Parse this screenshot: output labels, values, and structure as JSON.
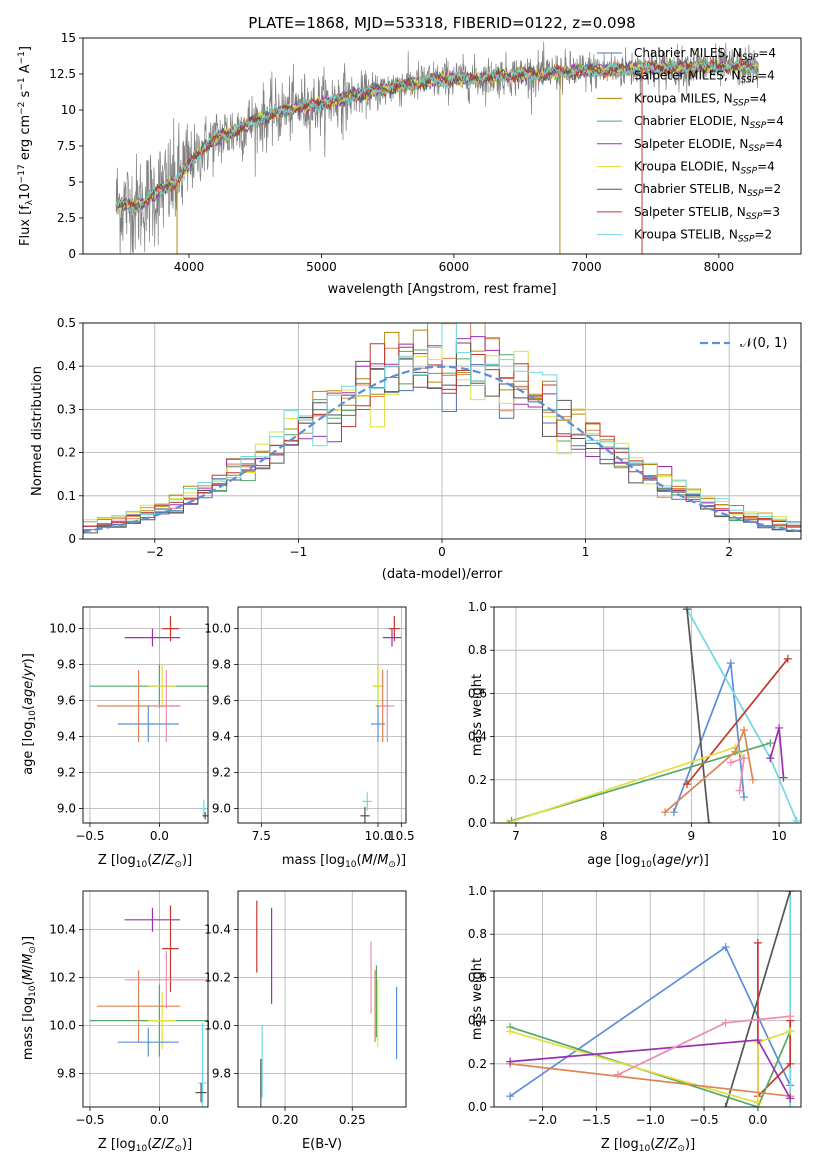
{
  "chart_data": [
    {
      "id": "spectrum",
      "type": "line",
      "title": "PLATE=1868, MJD=53318, FIBERID=0122, z=0.098",
      "xlabel": "wavelength [Angstrom, rest frame]",
      "ylabel": "Flux [f_λ 10^-17 erg cm^-2 s^-1 A^-1]",
      "xlim": [
        3200,
        8620
      ],
      "ylim": [
        0,
        15
      ],
      "xticks": [
        4000,
        5000,
        6000,
        7000,
        8000
      ],
      "yticks": [
        0,
        2.5,
        5,
        7.5,
        10,
        12.5,
        15
      ],
      "grid": false,
      "legend_position": "right",
      "legend": [
        {
          "label": "Chabrier MILES, N_SSP=4",
          "color": "#4c72b0"
        },
        {
          "label": "Salpeter MILES, N_SSP=4",
          "color": "#dd8452"
        },
        {
          "label": "Kroupa MILES, N_SSP=4",
          "color": "#b8860b"
        },
        {
          "label": "Chabrier ELODIE, N_SSP=4",
          "color": "#55a868"
        },
        {
          "label": "Salpeter ELODIE, N_SSP=4",
          "color": "#9b30b0"
        },
        {
          "label": "Kroupa ELODIE, N_SSP=4",
          "color": "#e0e040"
        },
        {
          "label": "Chabrier STELIB, N_SSP=2",
          "color": "#555555"
        },
        {
          "label": "Salpeter STELIB, N_SSP=3",
          "color": "#c0392b"
        },
        {
          "label": "Kroupa STELIB, N_SSP=2",
          "color": "#70d8e0"
        }
      ],
      "continuum": {
        "x": [
          3450,
          3600,
          3700,
          3800,
          3900,
          4000,
          4100,
          4200,
          4300,
          4400,
          4500,
          4600,
          4700,
          4800,
          4900,
          5000,
          5200,
          5400,
          5600,
          5800,
          6000,
          6200,
          6400,
          6600,
          6800,
          7000,
          7200,
          7400,
          7600,
          7800,
          8000,
          8200,
          8300
        ],
        "y": [
          3.5,
          3.3,
          3.9,
          4.5,
          5.0,
          6.2,
          7.3,
          8.0,
          8.4,
          8.8,
          9.2,
          9.6,
          9.9,
          10.2,
          10.3,
          10.4,
          10.9,
          11.3,
          11.7,
          12.0,
          12.2,
          12.2,
          12.4,
          12.5,
          12.6,
          12.7,
          12.8,
          12.9,
          12.9,
          13.0,
          13.0,
          13.0,
          12.9
        ]
      },
      "data_color": "#808080",
      "spikes": [
        {
          "x": 3910,
          "color": "#b8860b"
        },
        {
          "x": 6800,
          "color": "#b8860b"
        },
        {
          "x": 7420,
          "color": "#c0392b"
        }
      ]
    },
    {
      "id": "residuals",
      "type": "line",
      "xlabel": "(data-model)/error",
      "ylabel": "Normed distribution",
      "xlim": [
        -2.5,
        2.5
      ],
      "ylim": [
        0,
        0.5
      ],
      "xticks": [
        -2,
        -1,
        0,
        1,
        2
      ],
      "yticks": [
        0.0,
        0.1,
        0.2,
        0.3,
        0.4,
        0.5
      ],
      "grid": true,
      "legend": [
        {
          "label": "𝒩(0, 1)",
          "style": "dashed",
          "color": "#5b8fd8"
        }
      ],
      "series_colors": [
        "#4c72b0",
        "#dd8452",
        "#b8860b",
        "#55a868",
        "#9b30b0",
        "#e0e040",
        "#555555",
        "#c0392b",
        "#70d8e0"
      ]
    },
    {
      "id": "age_vs_Z",
      "type": "scatter",
      "xlabel": "Z [log10(Z/Z⊙)]",
      "ylabel": "age  [log10(age/yr)]",
      "xlim": [
        -0.55,
        0.35
      ],
      "ylim": [
        8.92,
        10.12
      ],
      "xticks": [
        "-0.5",
        "0.0"
      ],
      "yticks": [
        "9.0",
        "9.2",
        "9.4",
        "9.6",
        "9.8",
        "10.0"
      ],
      "grid": true,
      "points": [
        {
          "x": 0.08,
          "y": 10.0,
          "xerr": 0.06,
          "yerr": 0.07,
          "color": "#c0392b"
        },
        {
          "x": -0.05,
          "y": 9.95,
          "xerr": 0.2,
          "yerr": 0.05,
          "color": "#9b30b0"
        },
        {
          "x": 0.0,
          "y": 9.68,
          "xerr": 0.5,
          "yerr": 0.12,
          "color": "#55a868"
        },
        {
          "x": 0.02,
          "y": 9.68,
          "xerr": 0.1,
          "yerr": 0.12,
          "color": "#e0e040"
        },
        {
          "x": -0.15,
          "y": 9.57,
          "xerr": 0.3,
          "yerr": 0.2,
          "color": "#dd8452"
        },
        {
          "x": 0.05,
          "y": 9.57,
          "xerr": 0.1,
          "yerr": 0.2,
          "color": "#f08cb0"
        },
        {
          "x": -0.08,
          "y": 9.47,
          "xerr": 0.22,
          "yerr": 0.1,
          "color": "#5b8fd8"
        },
        {
          "x": 0.32,
          "y": 9.0,
          "xerr": 0.03,
          "yerr": 0.05,
          "color": "#70d8e0"
        },
        {
          "x": 0.33,
          "y": 8.96,
          "xerr": 0.02,
          "yerr": 0.02,
          "color": "#555555"
        }
      ]
    },
    {
      "id": "age_vs_mass",
      "type": "scatter",
      "xlabel": "mass [log10(M/M⊙)]",
      "ylabel": "",
      "xlim": [
        7.0,
        10.6
      ],
      "ylim": [
        8.92,
        10.12
      ],
      "xticks": [
        "7.5",
        "10.0",
        "10.5"
      ],
      "yticks": [
        "9.0",
        "9.2",
        "9.4",
        "9.6",
        "9.8",
        "10.0"
      ],
      "grid": true,
      "points": [
        {
          "x": 10.35,
          "y": 10.0,
          "xerr": 0.12,
          "yerr": 0.07,
          "color": "#c0392b"
        },
        {
          "x": 10.3,
          "y": 9.95,
          "xerr": 0.2,
          "yerr": 0.05,
          "color": "#9b30b0"
        },
        {
          "x": 10.0,
          "y": 9.68,
          "xerr": 0.1,
          "yerr": 0.12,
          "color": "#55a868"
        },
        {
          "x": 10.0,
          "y": 9.68,
          "xerr": 0.12,
          "yerr": 0.12,
          "color": "#e0e040"
        },
        {
          "x": 10.1,
          "y": 9.57,
          "xerr": 0.15,
          "yerr": 0.2,
          "color": "#dd8452"
        },
        {
          "x": 10.2,
          "y": 9.57,
          "xerr": 0.15,
          "yerr": 0.2,
          "color": "#f08cb0"
        },
        {
          "x": 10.0,
          "y": 9.47,
          "xerr": 0.15,
          "yerr": 0.1,
          "color": "#5b8fd8"
        },
        {
          "x": 9.77,
          "y": 9.04,
          "xerr": 0.1,
          "yerr": 0.05,
          "color": "#70d8e0"
        },
        {
          "x": 9.72,
          "y": 8.96,
          "xerr": 0.1,
          "yerr": 0.05,
          "color": "#555555"
        }
      ]
    },
    {
      "id": "mass_weight_vs_age",
      "type": "line",
      "xlabel": "age  [log10(age/yr)]",
      "ylabel": "mass weight",
      "xlim": [
        6.75,
        10.25
      ],
      "ylim": [
        0,
        1
      ],
      "xticks": [
        "7",
        "8",
        "9",
        "10"
      ],
      "yticks": [
        "0.0",
        "0.2",
        "0.4",
        "0.6",
        "0.8",
        "1.0"
      ],
      "grid": true,
      "series": [
        {
          "color": "#5b8fd8",
          "points": [
            [
              8.8,
              0.05
            ],
            [
              9.45,
              0.74
            ],
            [
              9.6,
              0.12
            ]
          ]
        },
        {
          "color": "#70d8e0",
          "points": [
            [
              8.95,
              0.99
            ],
            [
              9.9,
              0.3
            ],
            [
              10.2,
              0.01
            ]
          ]
        },
        {
          "color": "#555555",
          "points": [
            [
              8.95,
              0.99
            ],
            [
              9.2,
              0.0
            ]
          ]
        },
        {
          "color": "#c0392b",
          "points": [
            [
              8.95,
              0.18
            ],
            [
              10.1,
              0.76
            ]
          ]
        },
        {
          "color": "#55a868",
          "points": [
            [
              6.95,
              0.01
            ],
            [
              9.9,
              0.37
            ]
          ]
        },
        {
          "color": "#e0e040",
          "points": [
            [
              6.9,
              0.0
            ],
            [
              9.5,
              0.35
            ],
            [
              9.6,
              0.3
            ]
          ]
        },
        {
          "color": "#dd8452",
          "points": [
            [
              8.7,
              0.05
            ],
            [
              9.5,
              0.33
            ],
            [
              9.6,
              0.43
            ],
            [
              9.7,
              0.2
            ]
          ]
        },
        {
          "color": "#9b30b0",
          "points": [
            [
              9.9,
              0.3
            ],
            [
              10.0,
              0.44
            ],
            [
              10.05,
              0.21
            ]
          ]
        },
        {
          "color": "#f08cb0",
          "points": [
            [
              9.45,
              0.28
            ],
            [
              9.6,
              0.3
            ],
            [
              9.55,
              0.15
            ]
          ]
        }
      ]
    },
    {
      "id": "mass_vs_Z",
      "type": "scatter",
      "xlabel": "Z [log10(Z/Z⊙)]",
      "ylabel": "mass [log10(M/M⊙)]",
      "xlim": [
        -0.55,
        0.35
      ],
      "ylim": [
        9.66,
        10.56
      ],
      "xticks": [
        "-0.5",
        "0.0"
      ],
      "yticks": [
        "9.8",
        "10.0",
        "10.2",
        "10.4"
      ],
      "grid": true,
      "points": [
        {
          "x": 0.08,
          "y": 10.32,
          "xerr": 0.06,
          "yerr": 0.18,
          "color": "#c0392b"
        },
        {
          "x": -0.05,
          "y": 10.44,
          "xerr": 0.2,
          "yerr": 0.05,
          "color": "#9b30b0"
        },
        {
          "x": 0.0,
          "y": 10.02,
          "xerr": 0.5,
          "yerr": 0.15,
          "color": "#55a868"
        },
        {
          "x": 0.02,
          "y": 10.02,
          "xerr": 0.1,
          "yerr": 0.12,
          "color": "#e0e040"
        },
        {
          "x": -0.15,
          "y": 10.08,
          "xerr": 0.3,
          "yerr": 0.15,
          "color": "#dd8452"
        },
        {
          "x": 0.05,
          "y": 10.19,
          "xerr": 0.3,
          "yerr": 0.12,
          "color": "#f08cb0"
        },
        {
          "x": -0.08,
          "y": 9.93,
          "xerr": 0.22,
          "yerr": 0.06,
          "color": "#5b8fd8"
        },
        {
          "x": 0.31,
          "y": 9.76,
          "xerr": 0.03,
          "yerr": 0.25,
          "color": "#70d8e0"
        },
        {
          "x": 0.3,
          "y": 9.72,
          "xerr": 0.04,
          "yerr": 0.04,
          "color": "#555555"
        }
      ]
    },
    {
      "id": "mass_vs_EBV",
      "type": "scatter",
      "xlabel": "E(B-V)",
      "ylabel": "",
      "xlim": [
        0.165,
        0.29
      ],
      "ylim": [
        9.66,
        10.56
      ],
      "xticks": [
        "0.20",
        "0.25"
      ],
      "yticks": [
        "9.8",
        "10.0",
        "10.2",
        "10.4"
      ],
      "grid": true,
      "points": [
        {
          "x": 0.179,
          "y": 10.37,
          "yerr": 0.15,
          "color": "#c0392b"
        },
        {
          "x": 0.182,
          "y": 9.76,
          "yerr": 0.1,
          "color": "#555555"
        },
        {
          "x": 0.183,
          "y": 9.85,
          "yerr": 0.15,
          "color": "#70d8e0"
        },
        {
          "x": 0.19,
          "y": 10.29,
          "yerr": 0.2,
          "color": "#9b30b0"
        },
        {
          "x": 0.264,
          "y": 10.2,
          "yerr": 0.15,
          "color": "#f08cb0"
        },
        {
          "x": 0.267,
          "y": 10.08,
          "yerr": 0.15,
          "color": "#dd8452"
        },
        {
          "x": 0.268,
          "y": 10.1,
          "yerr": 0.15,
          "color": "#55a868"
        },
        {
          "x": 0.269,
          "y": 10.05,
          "yerr": 0.14,
          "color": "#e0e040"
        },
        {
          "x": 0.283,
          "y": 10.01,
          "yerr": 0.15,
          "color": "#5b8fd8"
        }
      ]
    },
    {
      "id": "mass_weight_vs_Z",
      "type": "line",
      "xlabel": "Z [log10(Z/Z⊙)]",
      "ylabel": "mass weight",
      "xlim": [
        -2.45,
        0.4
      ],
      "ylim": [
        0,
        1
      ],
      "xticks": [
        "-2.0",
        "-1.5",
        "-1.0",
        "-0.5",
        "0.0"
      ],
      "yticks": [
        "0.0",
        "0.2",
        "0.4",
        "0.6",
        "0.8",
        "1.0"
      ],
      "grid": true,
      "series": [
        {
          "color": "#5b8fd8",
          "points": [
            [
              -2.3,
              0.05
            ],
            [
              -0.3,
              0.74
            ],
            [
              0.3,
              0.1
            ]
          ]
        },
        {
          "color": "#70d8e0",
          "points": [
            [
              0.3,
              1.0
            ],
            [
              0.3,
              0.0
            ]
          ]
        },
        {
          "color": "#555555",
          "points": [
            [
              -0.3,
              0.0
            ],
            [
              0.3,
              1.0
            ]
          ]
        },
        {
          "color": "#c0392b",
          "points": [
            [
              0.0,
              0.76
            ],
            [
              0.0,
              0.05
            ],
            [
              0.3,
              0.2
            ],
            [
              0.3,
              0.4
            ]
          ]
        },
        {
          "color": "#55a868",
          "points": [
            [
              -2.3,
              0.37
            ],
            [
              0.0,
              0.0
            ],
            [
              0.3,
              0.35
            ]
          ]
        },
        {
          "color": "#e0e040",
          "points": [
            [
              -2.3,
              0.35
            ],
            [
              0.0,
              0.02
            ],
            [
              0.0,
              0.3
            ],
            [
              0.3,
              0.35
            ]
          ]
        },
        {
          "color": "#dd8452",
          "points": [
            [
              -2.3,
              0.2
            ],
            [
              0.3,
              0.05
            ]
          ]
        },
        {
          "color": "#9b30b0",
          "points": [
            [
              -2.3,
              0.21
            ],
            [
              0.0,
              0.31
            ],
            [
              0.3,
              0.04
            ]
          ]
        },
        {
          "color": "#f08cb0",
          "points": [
            [
              -1.3,
              0.15
            ],
            [
              -0.3,
              0.39
            ],
            [
              0.3,
              0.42
            ]
          ]
        }
      ]
    }
  ]
}
